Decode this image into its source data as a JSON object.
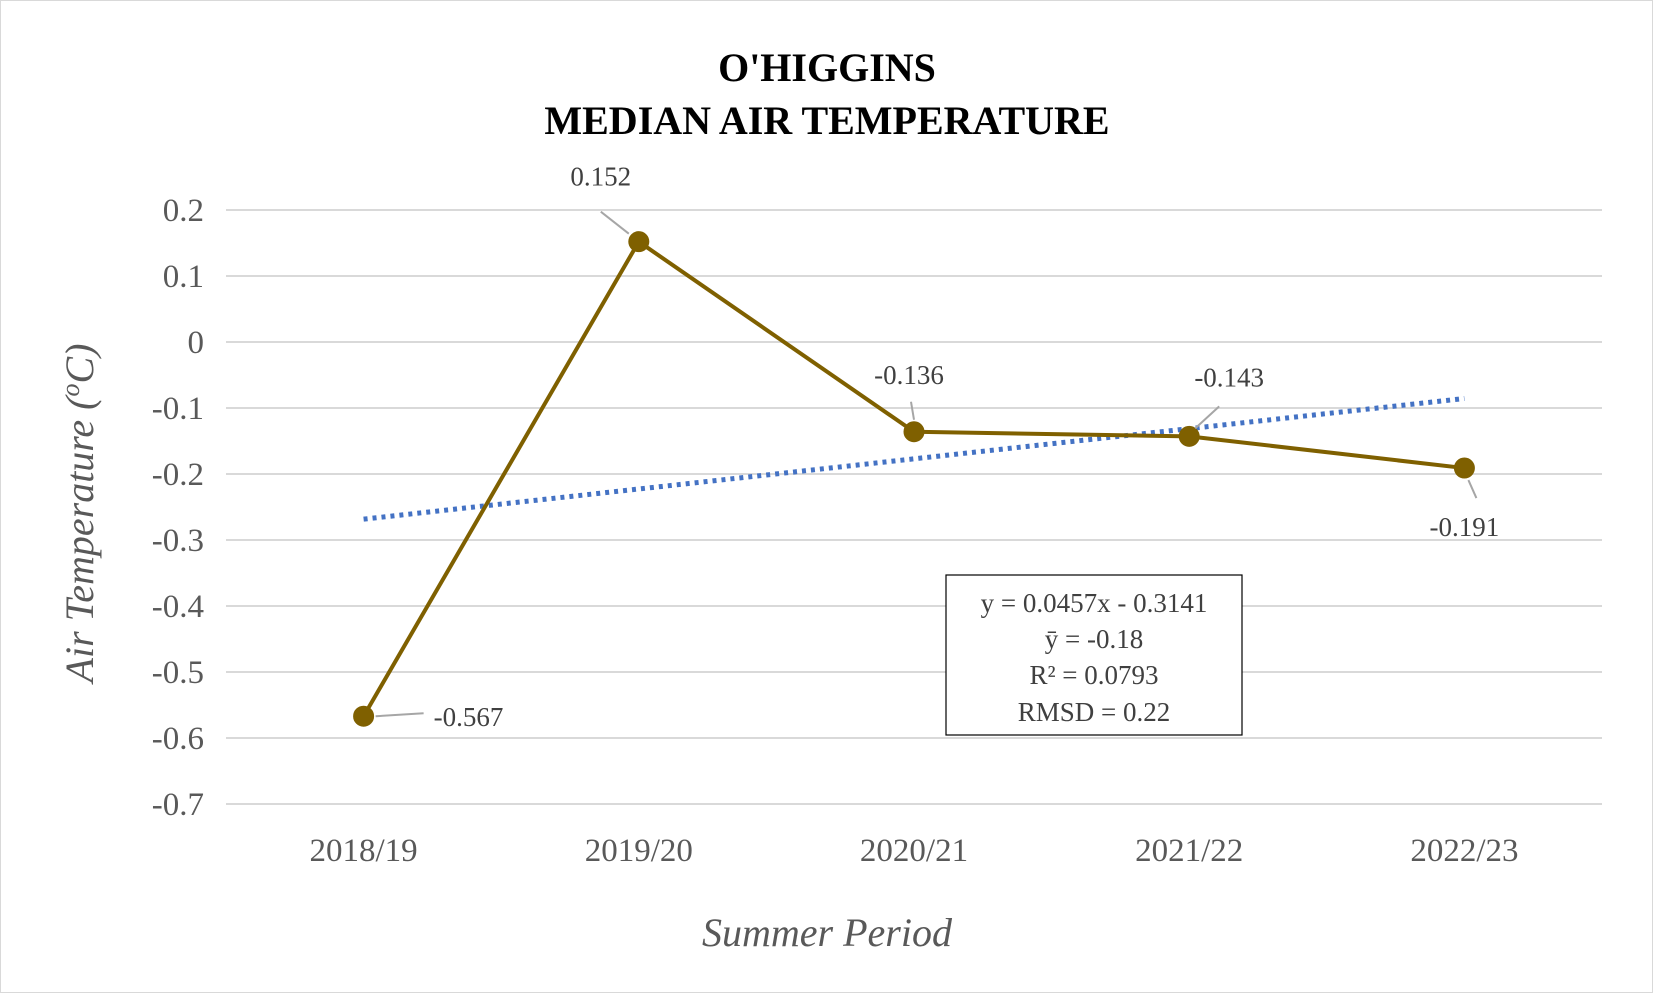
{
  "chart_data": {
    "type": "line",
    "title_lines": [
      "O'HIGGINS",
      "MEDIAN AIR TEMPERATURE"
    ],
    "xlabel": "Summer Period",
    "ylabel_main": "Air Temperature (",
    "ylabel_sup": "o",
    "ylabel_tail": "C)",
    "categories": [
      "2018/19",
      "2019/20",
      "2020/21",
      "2021/22",
      "2022/23"
    ],
    "series": [
      {
        "values": [
          -0.567,
          0.152,
          -0.136,
          -0.143,
          -0.191
        ],
        "labels": [
          "-0.567",
          "0.152",
          "-0.136",
          "-0.143",
          "-0.191"
        ],
        "color": "#7f6000"
      }
    ],
    "trendline": {
      "style": "dotted",
      "color": "#4472c4",
      "slope": 0.0457,
      "intercept": -0.3141
    },
    "equation_box": [
      "y = 0.0457x - 0.3141",
      "ȳ = -0.18",
      "R² = 0.0793",
      "RMSD = 0.22"
    ],
    "y_ticks": [
      "0.2",
      "0.1",
      "0",
      "-0.1",
      "-0.2",
      "-0.3",
      "-0.4",
      "-0.5",
      "-0.6",
      "-0.7"
    ],
    "ylim": [
      -0.7,
      0.2
    ],
    "grid": true,
    "legend": "none"
  }
}
